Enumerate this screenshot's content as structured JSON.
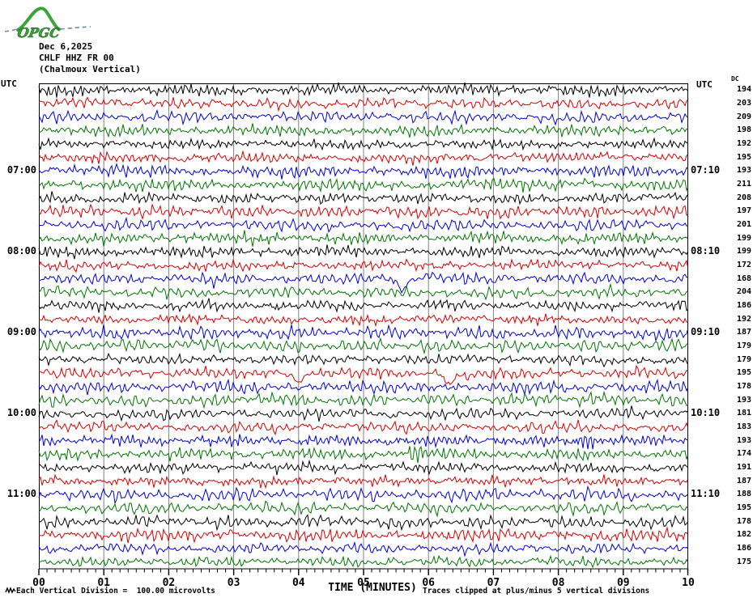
{
  "logo": {
    "text": "OPGC",
    "color": "#3aa33a"
  },
  "header": {
    "date": "Dec 6,2025",
    "station": "CHLF HHZ FR 00",
    "station_name": "(Chalmoux Vertical)"
  },
  "labels": {
    "utc_left": "UTC",
    "utc_right": "UTC",
    "dc_column_title": "DC"
  },
  "footer": {
    "scale_note": "Each Vertical Division =  100.00 microvolts",
    "x_axis_title": "TIME (MINUTES)",
    "clip_note": "Traces clipped at plus/minus 5 vertical divisions"
  },
  "chart_data": {
    "type": "line",
    "subtype": "helicorder-seismogram",
    "station": "CHLF HHZ FR 00",
    "station_name": "Chalmoux Vertical",
    "date": "Dec 6,2025",
    "minutes_per_row": 10,
    "grid": "vertical lines every 1 minute",
    "grid_color": "#808080",
    "trace_colors": [
      "#000000",
      "#dd0000",
      "#0000dd",
      "#007700"
    ],
    "x_axis": {
      "label": "TIME (MINUTES)",
      "ticks": [
        "00",
        "01",
        "02",
        "03",
        "04",
        "05",
        "06",
        "07",
        "08",
        "09",
        "10"
      ],
      "minor_ticks_per_major": 8
    },
    "left_axis_title": "UTC",
    "right_axis_title": "UTC",
    "dc_column_title": "DC",
    "rows": [
      {
        "start": "06:00",
        "dc": 194
      },
      {
        "start": "06:10",
        "dc": 203
      },
      {
        "start": "06:20",
        "dc": 209
      },
      {
        "start": "06:30",
        "dc": 198
      },
      {
        "start": "06:40",
        "dc": 192
      },
      {
        "start": "06:50",
        "dc": 195
      },
      {
        "start": "07:00",
        "dc": 193,
        "left_label": "07:00",
        "right_label": "07:10"
      },
      {
        "start": "07:10",
        "dc": 211
      },
      {
        "start": "07:20",
        "dc": 208
      },
      {
        "start": "07:30",
        "dc": 197
      },
      {
        "start": "07:40",
        "dc": 201
      },
      {
        "start": "07:50",
        "dc": 199
      },
      {
        "start": "08:00",
        "dc": 199,
        "left_label": "08:00",
        "right_label": "08:10"
      },
      {
        "start": "08:10",
        "dc": 172
      },
      {
        "start": "08:20",
        "dc": 168
      },
      {
        "start": "08:30",
        "dc": 204
      },
      {
        "start": "08:40",
        "dc": 186
      },
      {
        "start": "08:50",
        "dc": 192
      },
      {
        "start": "09:00",
        "dc": 187,
        "left_label": "09:00",
        "right_label": "09:10"
      },
      {
        "start": "09:10",
        "dc": 179
      },
      {
        "start": "09:20",
        "dc": 179
      },
      {
        "start": "09:30",
        "dc": 195
      },
      {
        "start": "09:40",
        "dc": 178
      },
      {
        "start": "09:50",
        "dc": 193
      },
      {
        "start": "10:00",
        "dc": 181,
        "left_label": "10:00",
        "right_label": "10:10"
      },
      {
        "start": "10:10",
        "dc": 183
      },
      {
        "start": "10:20",
        "dc": 193
      },
      {
        "start": "10:30",
        "dc": 174
      },
      {
        "start": "10:40",
        "dc": 191
      },
      {
        "start": "10:50",
        "dc": 187
      },
      {
        "start": "11:00",
        "dc": 188,
        "left_label": "11:00",
        "right_label": "11:10"
      },
      {
        "start": "11:10",
        "dc": 195
      },
      {
        "start": "11:20",
        "dc": 178
      },
      {
        "start": "11:30",
        "dc": 182
      },
      {
        "start": "11:40",
        "dc": 186
      },
      {
        "start": "11:50",
        "dc": 175
      }
    ],
    "events": [
      {
        "row": 15,
        "row_start": "08:20",
        "minute": 5.6,
        "kind": "spike-down",
        "color": "blue",
        "amp": 16,
        "width": 2.5
      },
      {
        "row": 22,
        "row_start": "09:30",
        "minute": 4.0,
        "kind": "spike-down",
        "color": "red",
        "amp": 13,
        "width": 2.2
      },
      {
        "row": 22,
        "row_start": "09:30",
        "minute": 6.33,
        "kind": "spike-down",
        "color": "red",
        "amp": 12,
        "width": 2.6
      },
      {
        "row": 27,
        "row_start": "10:20",
        "minute": 8.42,
        "kind": "burst",
        "color": "blue",
        "amp": 11,
        "width": 9
      },
      {
        "row": 28,
        "row_start": "10:30",
        "minute": 5.79,
        "kind": "spike-bipolar",
        "color": "green",
        "amp": 15,
        "width": 3
      }
    ],
    "clip_note": "Traces clipped at plus/minus 5 vertical divisions",
    "vertical_division": "100.00 microvolts"
  }
}
